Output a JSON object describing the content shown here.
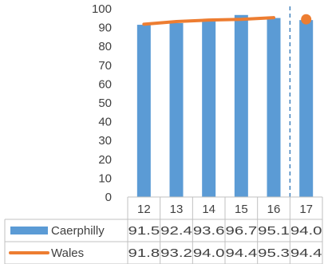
{
  "chart_data": {
    "type": "bar",
    "categories": [
      "12",
      "13",
      "14",
      "15",
      "16",
      "17"
    ],
    "ylim": [
      0,
      100
    ],
    "y_ticks": [
      "0",
      "10",
      "20",
      "30",
      "40",
      "50",
      "60",
      "70",
      "80",
      "90",
      "100"
    ],
    "grid": false,
    "legend": "data-table",
    "series": [
      {
        "name": "Caerphilly",
        "type": "bar",
        "color": "#5b9bd5",
        "values": [
          91.5,
          92.4,
          93.6,
          96.7,
          95.1,
          94.0
        ],
        "labels": [
          "91.5",
          "92.4",
          "93.6",
          "96.7",
          "95.1",
          "94.0"
        ]
      },
      {
        "name": "Wales",
        "type": "line",
        "color": "#ed7d31",
        "values": [
          91.8,
          93.2,
          94.0,
          94.4,
          95.3,
          94.4
        ],
        "labels": [
          "91.8",
          "93.2",
          "94.0",
          "94.4",
          "95.3",
          "94.4"
        ]
      }
    ],
    "divider_after_category": "16"
  }
}
